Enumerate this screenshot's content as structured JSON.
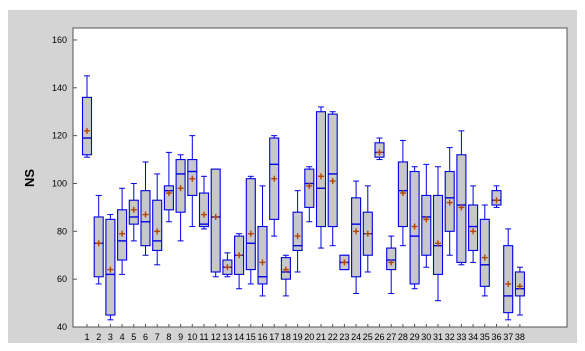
{
  "chart_data": {
    "type": "box",
    "title": "",
    "xlabel": "",
    "ylabel": "NS",
    "ylim": [
      40,
      165
    ],
    "yticks": [
      40,
      60,
      80,
      100,
      120,
      140,
      160
    ],
    "grid": false,
    "legend": "none",
    "colors": {
      "box_fill": "#c8c8c8",
      "box_stroke": "#0000e6",
      "mean_marker": "#b34700",
      "frame": "#d4d4d4",
      "plot_bg": "#ffffff"
    },
    "categories": [
      "1",
      "2",
      "3",
      "4",
      "5",
      "6",
      "7",
      "8",
      "9",
      "10",
      "11",
      "12",
      "13",
      "14",
      "15",
      "16",
      "17",
      "18",
      "19",
      "20",
      "21",
      "22",
      "23",
      "24",
      "25",
      "26",
      "27",
      "28",
      "29",
      "30",
      "31",
      "32",
      "33",
      "34",
      "35",
      "36",
      "37",
      "38"
    ],
    "boxes": [
      {
        "min": 111,
        "q1": 112,
        "median": 119,
        "q3": 136,
        "max": 145,
        "mean": 122
      },
      {
        "min": 58,
        "q1": 61,
        "median": 75,
        "q3": 86,
        "max": 95,
        "mean": 75
      },
      {
        "min": 43,
        "q1": 45,
        "median": 62,
        "q3": 85,
        "max": 87,
        "mean": 64
      },
      {
        "min": 62,
        "q1": 68,
        "median": 76,
        "q3": 89,
        "max": 98,
        "mean": 79
      },
      {
        "min": 76,
        "q1": 83,
        "median": 86,
        "q3": 93,
        "max": 100,
        "mean": 89
      },
      {
        "min": 70,
        "q1": 74,
        "median": 84,
        "q3": 97,
        "max": 109,
        "mean": 87
      },
      {
        "min": 66,
        "q1": 72,
        "median": 76,
        "q3": 93,
        "max": 104,
        "mean": 80
      },
      {
        "min": 84,
        "q1": 89,
        "median": 97,
        "q3": 99,
        "max": 113,
        "mean": 96
      },
      {
        "min": 76,
        "q1": 88,
        "median": 104,
        "q3": 110,
        "max": 112,
        "mean": 98
      },
      {
        "min": 82,
        "q1": 95,
        "median": 105,
        "q3": 110,
        "max": 120,
        "mean": 102
      },
      {
        "min": 81,
        "q1": 82,
        "median": 83,
        "q3": 96,
        "max": 103,
        "mean": 87
      },
      {
        "min": 61,
        "q1": 63,
        "median": 86,
        "q3": 106,
        "max": 106,
        "mean": 86
      },
      {
        "min": 61,
        "q1": 62,
        "median": 65,
        "q3": 68,
        "max": 71,
        "mean": 65
      },
      {
        "min": 56,
        "q1": 62,
        "median": 70,
        "q3": 78,
        "max": 79,
        "mean": 70
      },
      {
        "min": 58,
        "q1": 64,
        "median": 75,
        "q3": 102,
        "max": 103,
        "mean": 79
      },
      {
        "min": 53,
        "q1": 58,
        "median": 61,
        "q3": 82,
        "max": 99,
        "mean": 67
      },
      {
        "min": 78,
        "q1": 85,
        "median": 108,
        "q3": 119,
        "max": 120,
        "mean": 102
      },
      {
        "min": 53,
        "q1": 60,
        "median": 63,
        "q3": 69,
        "max": 70,
        "mean": 64
      },
      {
        "min": 63,
        "q1": 72,
        "median": 74,
        "q3": 88,
        "max": 97,
        "mean": 78
      },
      {
        "min": 84,
        "q1": 90,
        "median": 100,
        "q3": 106,
        "max": 107,
        "mean": 99
      },
      {
        "min": 73,
        "q1": 82,
        "median": 98,
        "q3": 130,
        "max": 132,
        "mean": 103
      },
      {
        "min": 74,
        "q1": 82,
        "median": 104,
        "q3": 129,
        "max": 130,
        "mean": 101
      },
      {
        "min": 64,
        "q1": 64,
        "median": 67,
        "q3": 70,
        "max": 70,
        "mean": 67
      },
      {
        "min": 54,
        "q1": 61,
        "median": 83,
        "q3": 94,
        "max": 101,
        "mean": 80
      },
      {
        "min": 63,
        "q1": 70,
        "median": 79,
        "q3": 88,
        "max": 99,
        "mean": 79
      },
      {
        "min": 110,
        "q1": 111,
        "median": 113,
        "q3": 117,
        "max": 119,
        "mean": 113
      },
      {
        "min": 54,
        "q1": 64,
        "median": 68,
        "q3": 73,
        "max": 78,
        "mean": 67
      },
      {
        "min": 74,
        "q1": 82,
        "median": 97,
        "q3": 109,
        "max": 118,
        "mean": 96
      },
      {
        "min": 56,
        "q1": 58,
        "median": 78,
        "q3": 105,
        "max": 107,
        "mean": 82
      },
      {
        "min": 65,
        "q1": 70,
        "median": 86,
        "q3": 95,
        "max": 108,
        "mean": 85
      },
      {
        "min": 51,
        "q1": 62,
        "median": 74,
        "q3": 95,
        "max": 107,
        "mean": 75
      },
      {
        "min": 70,
        "q1": 80,
        "median": 94,
        "q3": 105,
        "max": 115,
        "mean": 92
      },
      {
        "min": 66,
        "q1": 67,
        "median": 91,
        "q3": 112,
        "max": 122,
        "mean": 90
      },
      {
        "min": 67,
        "q1": 72,
        "median": 82,
        "q3": 91,
        "max": 99,
        "mean": 80
      },
      {
        "min": 53,
        "q1": 57,
        "median": 66,
        "q3": 85,
        "max": 91,
        "mean": 69
      },
      {
        "min": 90,
        "q1": 91,
        "median": 93,
        "q3": 97,
        "max": 99,
        "mean": 93
      },
      {
        "min": 43,
        "q1": 46,
        "median": 53,
        "q3": 74,
        "max": 81,
        "mean": 58
      },
      {
        "min": 45,
        "q1": 53,
        "median": 56,
        "q3": 63,
        "max": 65,
        "mean": 57
      }
    ]
  }
}
